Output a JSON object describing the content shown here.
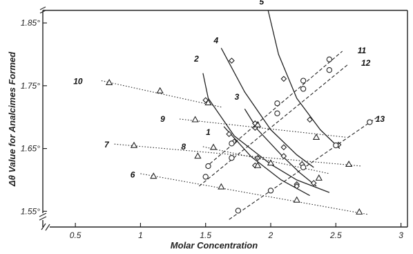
{
  "chart_data": {
    "type": "line",
    "title": "",
    "xlabel": "Molar Concentration",
    "ylabel": "Δθ Value for Analcimes Formed",
    "xlim": [
      0.25,
      3.05
    ],
    "ylim": [
      1.525,
      1.87
    ],
    "x_ticks": [
      {
        "value": 0.5,
        "label": "0.5"
      },
      {
        "value": 1.0,
        "label": "1"
      },
      {
        "value": 1.5,
        "label": "1.5"
      },
      {
        "value": 2.0,
        "label": "2"
      },
      {
        "value": 2.5,
        "label": "2.5"
      },
      {
        "value": 3.0,
        "label": "3"
      }
    ],
    "y_ticks": [
      {
        "value": 1.55,
        "label": "1.55°"
      },
      {
        "value": 1.65,
        "label": "1.65°"
      },
      {
        "value": 1.75,
        "label": "1.75°"
      },
      {
        "value": 1.85,
        "label": "1.85°"
      }
    ],
    "grid": false,
    "legend": "none",
    "series": [
      {
        "name": "1",
        "style": "solid",
        "marker": "diamond",
        "label_at": [
          1.52,
          1.676
        ],
        "line": [
          [
            1.64,
            1.685
          ],
          [
            1.85,
            1.637
          ],
          [
            2.08,
            1.6
          ],
          [
            2.3,
            1.575
          ]
        ],
        "points": [
          [
            1.68,
            1.673
          ],
          [
            1.72,
            1.661
          ],
          [
            1.88,
            1.623
          ],
          [
            2.2,
            1.593
          ]
        ]
      },
      {
        "name": "2",
        "style": "solid",
        "marker": "diamond",
        "label_at": [
          1.43,
          1.793
        ],
        "line": [
          [
            1.48,
            1.77
          ],
          [
            1.52,
            1.73
          ],
          [
            1.72,
            1.67
          ],
          [
            2.0,
            1.625
          ],
          [
            2.2,
            1.6
          ],
          [
            2.45,
            1.58
          ]
        ],
        "points": [
          [
            1.5,
            1.727
          ],
          [
            1.9,
            1.635
          ],
          [
            2.2,
            1.59
          ]
        ]
      },
      {
        "name": "3",
        "style": "solid",
        "marker": "diamond",
        "label_at": [
          1.74,
          1.732
        ],
        "line": [
          [
            1.8,
            1.713
          ],
          [
            1.9,
            1.68
          ],
          [
            2.08,
            1.64
          ],
          [
            2.22,
            1.612
          ],
          [
            2.35,
            1.59
          ]
        ],
        "points": [
          [
            1.88,
            1.69
          ],
          [
            2.1,
            1.638
          ],
          [
            2.33,
            1.595
          ]
        ]
      },
      {
        "name": "4",
        "style": "solid",
        "marker": "diamond",
        "label_at": [
          1.58,
          1.822
        ],
        "line": [
          [
            1.62,
            1.81
          ],
          [
            1.8,
            1.74
          ],
          [
            2.0,
            1.68
          ],
          [
            2.2,
            1.64
          ],
          [
            2.33,
            1.62
          ]
        ],
        "points": [
          [
            1.7,
            1.79
          ],
          [
            1.88,
            1.683
          ],
          [
            2.1,
            1.652
          ],
          [
            2.24,
            1.625
          ]
        ]
      },
      {
        "name": "5",
        "style": "solid",
        "marker": "diamond",
        "label_at": [
          1.93,
          1.884
        ],
        "line": [
          [
            1.98,
            1.87
          ],
          [
            2.06,
            1.8
          ],
          [
            2.2,
            1.73
          ],
          [
            2.38,
            1.68
          ],
          [
            2.53,
            1.65
          ]
        ],
        "points": [
          [
            2.1,
            1.761
          ],
          [
            2.3,
            1.696
          ],
          [
            2.52,
            1.656
          ]
        ]
      },
      {
        "name": "6",
        "style": "dotted",
        "marker": "triangle",
        "label_at": [
          0.94,
          1.608
        ],
        "line": [
          [
            1.0,
            1.61
          ],
          [
            2.75,
            1.545
          ]
        ],
        "points": [
          [
            1.1,
            1.606
          ],
          [
            1.62,
            1.589
          ],
          [
            2.2,
            1.568
          ],
          [
            2.68,
            1.549
          ]
        ]
      },
      {
        "name": "7",
        "style": "dotted",
        "marker": "triangle",
        "label_at": [
          0.74,
          1.656
        ],
        "line": [
          [
            0.8,
            1.657
          ],
          [
            2.7,
            1.622
          ]
        ],
        "points": [
          [
            0.95,
            1.655
          ],
          [
            1.44,
            1.638
          ],
          [
            2.0,
            1.627
          ],
          [
            2.6,
            1.625
          ]
        ]
      },
      {
        "name": "8",
        "style": "dotted",
        "marker": "triangle",
        "label_at": [
          1.33,
          1.653
        ],
        "line": [
          [
            1.48,
            1.653
          ],
          [
            2.45,
            1.61
          ]
        ],
        "points": [
          [
            1.56,
            1.652
          ],
          [
            1.9,
            1.623
          ],
          [
            2.37,
            1.603
          ]
        ]
      },
      {
        "name": "9",
        "style": "dotted",
        "marker": "triangle",
        "label_at": [
          1.17,
          1.697
        ],
        "line": [
          [
            1.3,
            1.697
          ],
          [
            2.58,
            1.668
          ]
        ],
        "points": [
          [
            1.42,
            1.696
          ],
          [
            1.9,
            1.688
          ],
          [
            2.35,
            1.668
          ]
        ]
      },
      {
        "name": "10",
        "style": "dotted",
        "marker": "triangle",
        "label_at": [
          0.52,
          1.757
        ],
        "line": [
          [
            0.7,
            1.758
          ],
          [
            1.62,
            1.716
          ]
        ],
        "points": [
          [
            0.76,
            1.755
          ],
          [
            1.15,
            1.742
          ],
          [
            1.52,
            1.723
          ]
        ]
      },
      {
        "name": "11",
        "style": "dashed",
        "marker": "circle",
        "label_at": [
          2.7,
          1.806
        ],
        "line": [
          [
            1.5,
            1.62
          ],
          [
            2.55,
            1.805
          ]
        ],
        "points": [
          [
            1.52,
            1.622
          ],
          [
            1.7,
            1.658
          ],
          [
            2.05,
            1.722
          ],
          [
            2.25,
            1.758
          ],
          [
            2.45,
            1.792
          ]
        ]
      },
      {
        "name": "12",
        "style": "dashed",
        "marker": "circle",
        "label_at": [
          2.73,
          1.786
        ],
        "line": [
          [
            1.45,
            1.59
          ],
          [
            2.6,
            1.785
          ]
        ],
        "points": [
          [
            1.5,
            1.605
          ],
          [
            1.7,
            1.635
          ],
          [
            2.05,
            1.706
          ],
          [
            2.25,
            1.745
          ],
          [
            2.45,
            1.775
          ]
        ]
      },
      {
        "name": "13",
        "style": "dashed",
        "marker": "circle",
        "label_at": [
          2.84,
          1.697
        ],
        "line": [
          [
            1.68,
            1.537
          ],
          [
            2.82,
            1.7
          ]
        ],
        "points": [
          [
            1.75,
            1.551
          ],
          [
            2.0,
            1.583
          ],
          [
            2.25,
            1.62
          ],
          [
            2.5,
            1.655
          ],
          [
            2.76,
            1.692
          ]
        ]
      }
    ]
  }
}
